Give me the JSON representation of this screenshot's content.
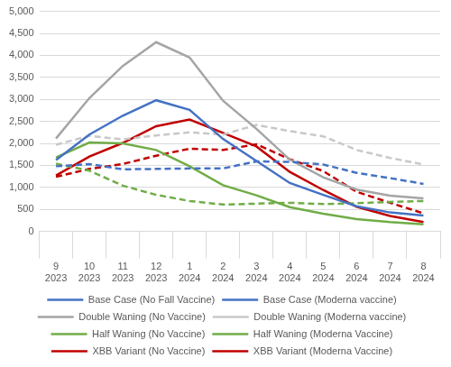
{
  "chart_data": {
    "type": "line",
    "categories": [
      [
        "9",
        "2023"
      ],
      [
        "10",
        "2023"
      ],
      [
        "11",
        "2023"
      ],
      [
        "12",
        "2023"
      ],
      [
        "1",
        "2024"
      ],
      [
        "2",
        "2024"
      ],
      [
        "3",
        "2024"
      ],
      [
        "4",
        "2024"
      ],
      [
        "5",
        "2024"
      ],
      [
        "6",
        "2024"
      ],
      [
        "7",
        "2024"
      ],
      [
        "8",
        "2024"
      ]
    ],
    "series": [
      {
        "name": "Base Case (No Fall Vaccine)",
        "color": "#4472c4",
        "line_style": "solid",
        "values": [
          1620,
          2200,
          2630,
          2980,
          2760,
          2100,
          1600,
          1100,
          830,
          570,
          430,
          360
        ]
      },
      {
        "name": "Base Case (Moderna vaccine)",
        "color": "#4472c4",
        "line_style": "dashed",
        "values": [
          1480,
          1530,
          1410,
          1420,
          1430,
          1430,
          1590,
          1580,
          1520,
          1330,
          1210,
          1080
        ]
      },
      {
        "name": "Double Waning (No Vaccine)",
        "color": "#a5a5a5",
        "line_style": "solid",
        "values": [
          2110,
          3030,
          3760,
          4300,
          3950,
          2970,
          2330,
          1630,
          1230,
          950,
          810,
          750
        ]
      },
      {
        "name": "Double Waning (Moderna vaccine)",
        "color": "#c8c8c8",
        "line_style": "dashed",
        "values": [
          1970,
          2170,
          2090,
          2180,
          2250,
          2200,
          2420,
          2280,
          2160,
          1850,
          1670,
          1520
        ]
      },
      {
        "name": "Half Waning (No Vaccine)",
        "color": "#70ad47",
        "line_style": "solid",
        "values": [
          1680,
          2020,
          2000,
          1850,
          1480,
          1050,
          820,
          550,
          400,
          280,
          210,
          160
        ]
      },
      {
        "name": "Half Waning (Moderna Vaccine)",
        "color": "#70ad47",
        "line_style": "dashed",
        "values": [
          1540,
          1380,
          1040,
          830,
          690,
          610,
          630,
          650,
          620,
          640,
          670,
          690
        ]
      },
      {
        "name": "XBB Variant (No Vaccine)",
        "color": "#c00000",
        "line_style": "solid",
        "values": [
          1270,
          1700,
          2010,
          2390,
          2540,
          2240,
          1930,
          1350,
          940,
          560,
          350,
          210
        ]
      },
      {
        "name": "XBB Variant (Moderna Vaccine)",
        "color": "#c00000",
        "line_style": "dashed",
        "values": [
          1240,
          1420,
          1530,
          1720,
          1880,
          1850,
          1980,
          1640,
          1370,
          900,
          650,
          410
        ]
      }
    ],
    "ylim": [
      0,
      5000
    ],
    "yticks": [
      0,
      500,
      {
        "value": 1000,
        "label": "1,000"
      },
      {
        "value": 1500,
        "label": "1,500"
      },
      {
        "value": 2000,
        "label": "2,000"
      },
      {
        "value": 2500,
        "label": "2,500"
      },
      {
        "value": 3000,
        "label": "3,000"
      },
      {
        "value": 3500,
        "label": "3,500"
      },
      {
        "value": 4000,
        "label": "4,000"
      },
      {
        "value": 4500,
        "label": "4,500"
      },
      {
        "value": 5000,
        "label": "5,000"
      }
    ],
    "grid": true,
    "legend": "bottom"
  }
}
